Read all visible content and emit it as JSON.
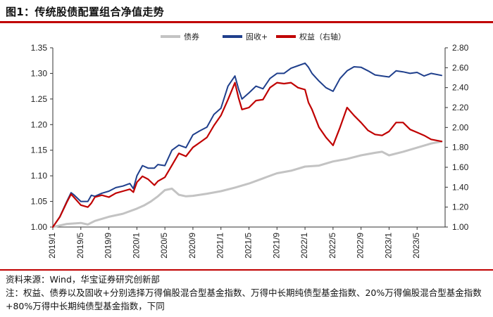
{
  "title": "图1：传统股债配置组合净值走势",
  "source": "资料来源：Wind，华宝证券研究创新部",
  "note": "注：权益、债券以及固收+分别选择万得偏股混合型基金指数、万得中长期纯债型基金指数、20%万得偏股混合型基金指数+80%万得中长期纯债型基金指数，下同",
  "colors": {
    "rule": "#c00000",
    "bond": "#c3c3c3",
    "fixed": "#1f3f8c",
    "equity": "#c00000"
  },
  "chart_data": {
    "type": "line",
    "x_tick_labels": [
      "2019/1",
      "2019/5",
      "2019/9",
      "2020/1",
      "2020/5",
      "2020/9",
      "2021/1",
      "2021/5",
      "2021/9",
      "2022/1",
      "2022/5",
      "2022/9",
      "2023/1",
      "2023/5"
    ],
    "x_tick_months": [
      0,
      4,
      8,
      12,
      16,
      20,
      24,
      28,
      32,
      36,
      40,
      44,
      48,
      52
    ],
    "ylim_left": [
      1.0,
      1.35
    ],
    "left_ticks": [
      "1.00",
      "1.05",
      "1.10",
      "1.15",
      "1.20",
      "1.25",
      "1.30",
      "1.35"
    ],
    "ylim_right": [
      1.0,
      2.8
    ],
    "right_ticks": [
      "1.00",
      "1.20",
      "1.40",
      "1.60",
      "1.80",
      "2.00",
      "2.20",
      "2.40",
      "2.60",
      "2.80"
    ],
    "legend_position": "top",
    "x_units": "months since 2019/1",
    "series": [
      {
        "name": "债券",
        "axis": "left",
        "color": "#c3c3c3",
        "width": 3,
        "points": [
          [
            0,
            1.0
          ],
          [
            2,
            1.006
          ],
          [
            4,
            1.008
          ],
          [
            5,
            1.005
          ],
          [
            6,
            1.012
          ],
          [
            8,
            1.02
          ],
          [
            10,
            1.026
          ],
          [
            12,
            1.036
          ],
          [
            13,
            1.042
          ],
          [
            14,
            1.05
          ],
          [
            15,
            1.06
          ],
          [
            16,
            1.072
          ],
          [
            17,
            1.075
          ],
          [
            18,
            1.063
          ],
          [
            19,
            1.06
          ],
          [
            20,
            1.061
          ],
          [
            22,
            1.065
          ],
          [
            24,
            1.07
          ],
          [
            26,
            1.077
          ],
          [
            28,
            1.085
          ],
          [
            30,
            1.095
          ],
          [
            31,
            1.1
          ],
          [
            32,
            1.105
          ],
          [
            34,
            1.11
          ],
          [
            36,
            1.118
          ],
          [
            38,
            1.12
          ],
          [
            40,
            1.128
          ],
          [
            42,
            1.133
          ],
          [
            44,
            1.14
          ],
          [
            46,
            1.145
          ],
          [
            47,
            1.147
          ],
          [
            48,
            1.14
          ],
          [
            50,
            1.147
          ],
          [
            52,
            1.155
          ],
          [
            54,
            1.163
          ],
          [
            55.5,
            1.167
          ]
        ]
      },
      {
        "name": "固收+",
        "axis": "left",
        "color": "#1f3f8c",
        "width": 2,
        "points": [
          [
            0,
            1.0
          ],
          [
            1,
            1.02
          ],
          [
            2,
            1.05
          ],
          [
            2.6,
            1.067
          ],
          [
            3,
            1.063
          ],
          [
            4,
            1.05
          ],
          [
            5,
            1.05
          ],
          [
            5.5,
            1.062
          ],
          [
            6,
            1.06
          ],
          [
            7,
            1.066
          ],
          [
            8,
            1.07
          ],
          [
            9,
            1.077
          ],
          [
            10,
            1.08
          ],
          [
            11,
            1.085
          ],
          [
            11.5,
            1.075
          ],
          [
            12,
            1.1
          ],
          [
            12.8,
            1.12
          ],
          [
            13.6,
            1.115
          ],
          [
            14.5,
            1.115
          ],
          [
            15,
            1.122
          ],
          [
            16,
            1.12
          ],
          [
            17,
            1.15
          ],
          [
            18,
            1.16
          ],
          [
            19,
            1.155
          ],
          [
            20,
            1.18
          ],
          [
            21,
            1.188
          ],
          [
            22,
            1.195
          ],
          [
            23,
            1.22
          ],
          [
            24,
            1.232
          ],
          [
            25,
            1.275
          ],
          [
            26,
            1.295
          ],
          [
            26.5,
            1.27
          ],
          [
            27,
            1.25
          ],
          [
            28,
            1.262
          ],
          [
            29,
            1.275
          ],
          [
            30,
            1.27
          ],
          [
            31,
            1.29
          ],
          [
            32,
            1.3
          ],
          [
            33,
            1.3
          ],
          [
            34,
            1.31
          ],
          [
            35,
            1.315
          ],
          [
            36,
            1.32
          ],
          [
            36.5,
            1.312
          ],
          [
            37,
            1.3
          ],
          [
            38,
            1.285
          ],
          [
            39,
            1.272
          ],
          [
            40,
            1.265
          ],
          [
            41,
            1.29
          ],
          [
            42,
            1.305
          ],
          [
            43,
            1.313
          ],
          [
            44,
            1.312
          ],
          [
            45,
            1.305
          ],
          [
            46,
            1.297
          ],
          [
            47,
            1.295
          ],
          [
            48,
            1.293
          ],
          [
            49,
            1.305
          ],
          [
            50,
            1.303
          ],
          [
            51,
            1.3
          ],
          [
            52,
            1.302
          ],
          [
            53,
            1.295
          ],
          [
            54,
            1.3
          ],
          [
            55.5,
            1.296
          ]
        ]
      },
      {
        "name": "权益（右轴）",
        "axis": "right",
        "color": "#c00000",
        "width": 2.2,
        "points": [
          [
            0,
            1.0
          ],
          [
            1,
            1.1
          ],
          [
            2,
            1.25
          ],
          [
            2.6,
            1.33
          ],
          [
            3,
            1.3
          ],
          [
            4,
            1.22
          ],
          [
            5,
            1.2
          ],
          [
            5.5,
            1.24
          ],
          [
            6,
            1.3
          ],
          [
            7,
            1.32
          ],
          [
            8,
            1.3
          ],
          [
            9,
            1.34
          ],
          [
            10,
            1.36
          ],
          [
            11,
            1.38
          ],
          [
            11.5,
            1.35
          ],
          [
            12,
            1.45
          ],
          [
            12.8,
            1.51
          ],
          [
            13.6,
            1.48
          ],
          [
            14.5,
            1.42
          ],
          [
            15,
            1.46
          ],
          [
            16,
            1.5
          ],
          [
            17,
            1.62
          ],
          [
            18,
            1.74
          ],
          [
            19,
            1.71
          ],
          [
            20,
            1.8
          ],
          [
            21,
            1.85
          ],
          [
            22,
            1.9
          ],
          [
            23,
            2.02
          ],
          [
            24,
            2.12
          ],
          [
            25,
            2.28
          ],
          [
            26,
            2.45
          ],
          [
            26.5,
            2.3
          ],
          [
            27,
            2.18
          ],
          [
            28,
            2.2
          ],
          [
            29,
            2.27
          ],
          [
            30,
            2.28
          ],
          [
            31,
            2.4
          ],
          [
            32,
            2.45
          ],
          [
            33,
            2.44
          ],
          [
            34,
            2.45
          ],
          [
            35,
            2.4
          ],
          [
            36,
            2.38
          ],
          [
            36.5,
            2.25
          ],
          [
            37,
            2.18
          ],
          [
            38,
            2.0
          ],
          [
            39,
            1.9
          ],
          [
            40,
            1.82
          ],
          [
            41,
            2.0
          ],
          [
            42,
            2.2
          ],
          [
            43,
            2.12
          ],
          [
            44,
            2.05
          ],
          [
            45,
            1.97
          ],
          [
            46,
            1.93
          ],
          [
            47,
            1.92
          ],
          [
            48,
            1.96
          ],
          [
            49,
            2.05
          ],
          [
            50,
            2.05
          ],
          [
            51,
            1.98
          ],
          [
            52,
            1.95
          ],
          [
            53,
            1.92
          ],
          [
            54,
            1.88
          ],
          [
            55.5,
            1.86
          ]
        ]
      }
    ]
  }
}
